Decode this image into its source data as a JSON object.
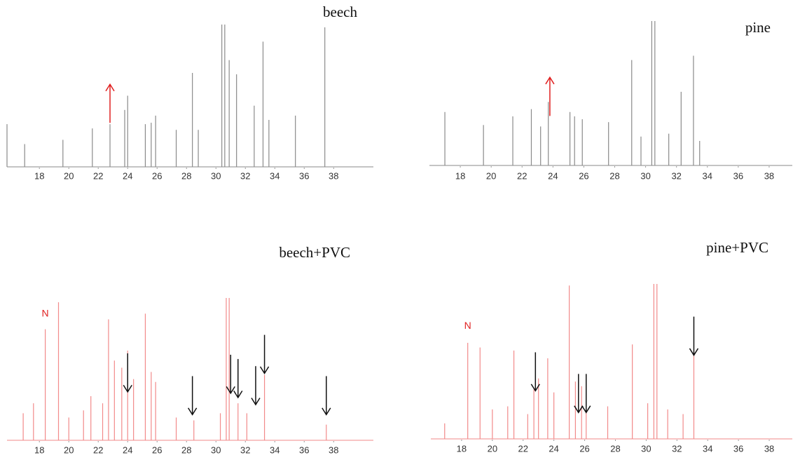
{
  "chart_data": [
    {
      "type": "peaks",
      "title": "beech",
      "color": "#8a8a8a",
      "xlim": [
        15.8,
        40.7
      ],
      "ylim": [
        0,
        100
      ],
      "xticks": [
        18,
        20,
        22,
        24,
        26,
        28,
        30,
        32,
        34,
        36,
        38
      ],
      "x": [
        15.8,
        17.0,
        19.6,
        21.6,
        22.8,
        23.8,
        24.0,
        25.2,
        25.6,
        25.9,
        27.3,
        28.4,
        28.8,
        30.4,
        30.6,
        30.9,
        31.4,
        32.6,
        33.2,
        33.6,
        35.4,
        37.4
      ],
      "values": [
        30,
        16,
        19,
        27,
        30,
        40,
        50,
        30,
        31,
        36,
        26,
        66,
        26,
        100,
        100,
        75,
        65,
        43,
        88,
        33,
        36,
        98
      ],
      "arrow_color": "#e02020",
      "arrow_direction": "up",
      "arrows": [
        {
          "x": 22.8,
          "y": 58
        }
      ]
    },
    {
      "type": "peaks",
      "title": "pine",
      "color": "#8a8a8a",
      "xlim": [
        16,
        39.5
      ],
      "ylim": [
        0,
        100
      ],
      "xticks": [
        18,
        20,
        22,
        24,
        26,
        28,
        30,
        32,
        34,
        36,
        38
      ],
      "x": [
        17.0,
        19.5,
        21.4,
        22.6,
        23.2,
        23.7,
        25.1,
        25.4,
        25.9,
        27.6,
        29.1,
        29.7,
        30.4,
        30.6,
        31.5,
        32.3,
        33.1,
        33.5
      ],
      "values": [
        37,
        28,
        34,
        39,
        27,
        44,
        37,
        34,
        32,
        30,
        73,
        20,
        100,
        100,
        22,
        51,
        76,
        17
      ],
      "arrow_color": "#e02020",
      "arrow_direction": "up",
      "arrows": [
        {
          "x": 23.8,
          "y": 61
        }
      ]
    },
    {
      "type": "peaks",
      "title": "beech+PVC",
      "color": "#f28a8a",
      "xlim": [
        15.8,
        40.7
      ],
      "ylim": [
        0,
        100
      ],
      "xticks": [
        18,
        20,
        22,
        24,
        26,
        28,
        30,
        32,
        34,
        36,
        38
      ],
      "x": [
        16.9,
        17.6,
        18.4,
        19.3,
        20.0,
        21.0,
        21.5,
        22.3,
        22.7,
        23.1,
        23.6,
        24.0,
        24.4,
        25.2,
        25.6,
        25.9,
        27.3,
        28.5,
        30.3,
        30.7,
        30.9,
        31.5,
        32.1,
        33.3,
        37.5
      ],
      "values": [
        19,
        26,
        78,
        97,
        16,
        21,
        31,
        26,
        85,
        56,
        51,
        63,
        43,
        89,
        48,
        41,
        16,
        14,
        19,
        100,
        100,
        26,
        19,
        46,
        11
      ],
      "annotations": [
        {
          "text": "N",
          "x": 18.4,
          "y": 87
        }
      ],
      "arrow_color": "#111111",
      "arrow_direction": "down",
      "arrows": [
        {
          "x": 24.0,
          "y": 34
        },
        {
          "x": 28.4,
          "y": 18
        },
        {
          "x": 31.0,
          "y": 33
        },
        {
          "x": 31.5,
          "y": 30
        },
        {
          "x": 32.7,
          "y": 25
        },
        {
          "x": 33.3,
          "y": 47
        },
        {
          "x": 37.5,
          "y": 18
        }
      ]
    },
    {
      "type": "peaks",
      "title": "pine+PVC",
      "color": "#f28a8a",
      "xlim": [
        16,
        39.5
      ],
      "ylim": [
        0,
        100
      ],
      "xticks": [
        18,
        20,
        22,
        24,
        26,
        28,
        30,
        32,
        34,
        36,
        38
      ],
      "x": [
        16.9,
        18.4,
        19.2,
        20.0,
        21.0,
        21.4,
        22.3,
        22.7,
        23.0,
        23.6,
        24.0,
        25.0,
        25.4,
        25.8,
        26.1,
        27.5,
        29.1,
        30.1,
        30.5,
        30.7,
        31.4,
        32.4,
        33.1
      ],
      "values": [
        10,
        62,
        59,
        19,
        21,
        57,
        16,
        32,
        39,
        52,
        30,
        99,
        37,
        34,
        30,
        21,
        61,
        23,
        100,
        100,
        19,
        16,
        55
      ],
      "annotations": [
        {
          "text": "N",
          "x": 18.4,
          "y": 71
        }
      ],
      "arrow_color": "#111111",
      "arrow_direction": "down",
      "arrows": [
        {
          "x": 22.8,
          "y": 31
        },
        {
          "x": 25.6,
          "y": 17
        },
        {
          "x": 26.1,
          "y": 17
        },
        {
          "x": 33.1,
          "y": 54
        }
      ]
    }
  ]
}
